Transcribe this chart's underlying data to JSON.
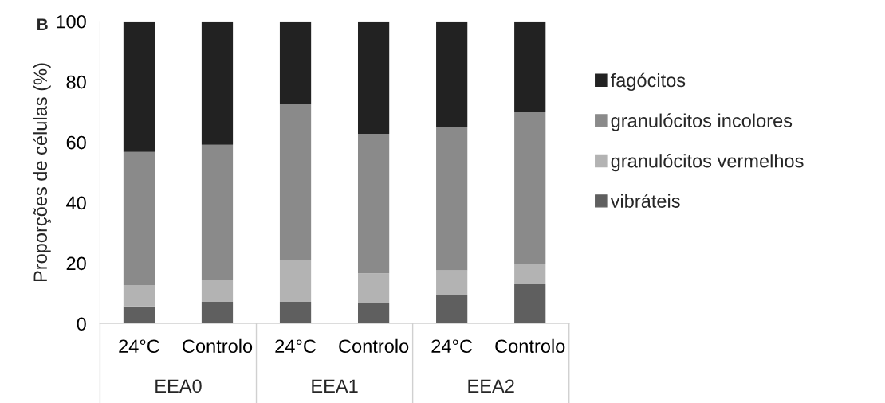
{
  "chart_data": {
    "type": "bar",
    "stacked": true,
    "ylabel": "Proporções de células (%)",
    "categories": [
      "24°C",
      "Controlo",
      "24°C",
      "Controlo",
      "24°C",
      "Controlo"
    ],
    "series": [
      {
        "name": "vibráteis",
        "color": "#5f5f5f",
        "values": [
          5.7,
          7.2,
          7.2,
          6.9,
          9.4,
          13.1
        ]
      },
      {
        "name": "granulócitos vermelhos",
        "color": "#b3b3b3",
        "values": [
          7.0,
          7.1,
          13.9,
          9.7,
          8.2,
          6.6
        ]
      },
      {
        "name": "granulócitos incolores",
        "color": "#8a8a8a",
        "values": [
          44.1,
          44.9,
          51.5,
          46.2,
          47.5,
          50.2
        ]
      },
      {
        "name": "fagócitos",
        "color": "#222222",
        "values": [
          43.2,
          40.8,
          27.4,
          37.2,
          34.9,
          30.1
        ]
      }
    ],
    "ylim": [
      0,
      100
    ],
    "yticks": [
      0,
      20,
      40,
      60,
      80,
      100
    ],
    "grid": false,
    "legend": "right",
    "annotations": [
      "B",
      "EEA0",
      "EEA1",
      "EEA2"
    ]
  }
}
